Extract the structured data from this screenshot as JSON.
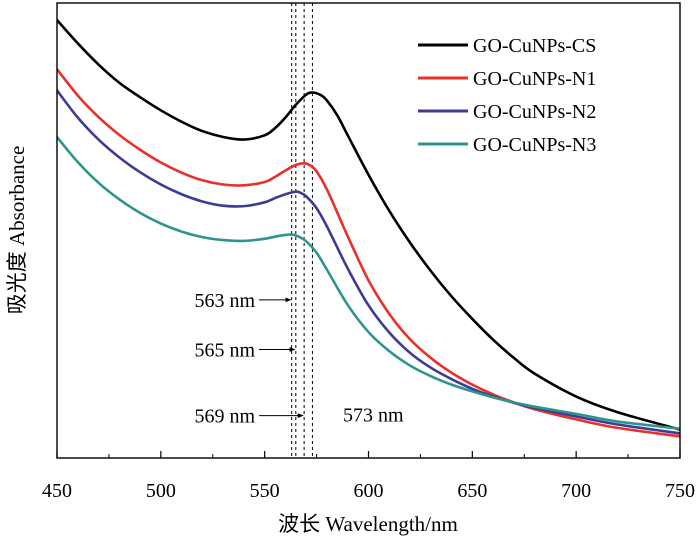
{
  "chart_data": {
    "type": "line",
    "xlabel": "波长 Wavelength/nm",
    "ylabel": "吸光度 Absorbance",
    "xlim": [
      450,
      750
    ],
    "ylim": [
      0,
      1
    ],
    "x_ticks": [
      "450",
      "500",
      "550",
      "600",
      "650",
      "700",
      "750"
    ],
    "y_ticks_shown": false,
    "grid": false,
    "legend_position": "top-right",
    "series": [
      {
        "name": "GO-CuNPs-CS",
        "color": "#000000",
        "x": [
          450,
          460,
          470,
          480,
          490,
          500,
          510,
          520,
          530,
          540,
          550,
          555,
          560,
          565,
          570,
          573,
          577,
          580,
          585,
          590,
          600,
          610,
          620,
          630,
          640,
          650,
          660,
          670,
          680,
          700,
          720,
          750
        ],
        "y": [
          1.0,
          0.945,
          0.895,
          0.852,
          0.818,
          0.787,
          0.76,
          0.738,
          0.724,
          0.718,
          0.728,
          0.745,
          0.77,
          0.8,
          0.824,
          0.829,
          0.823,
          0.81,
          0.775,
          0.728,
          0.635,
          0.55,
          0.475,
          0.408,
          0.348,
          0.295,
          0.246,
          0.203,
          0.166,
          0.112,
          0.075,
          0.034
        ]
      },
      {
        "name": "GO-CuNPs-N1",
        "color": "#e8312a",
        "x": [
          450,
          460,
          470,
          480,
          490,
          500,
          510,
          520,
          530,
          540,
          550,
          555,
          560,
          565,
          569,
          572,
          575,
          580,
          590,
          600,
          610,
          620,
          630,
          640,
          650,
          660,
          670,
          680,
          700,
          720,
          750
        ],
        "y": [
          0.884,
          0.822,
          0.771,
          0.729,
          0.694,
          0.664,
          0.64,
          0.622,
          0.612,
          0.61,
          0.618,
          0.63,
          0.645,
          0.658,
          0.662,
          0.657,
          0.643,
          0.6,
          0.49,
          0.386,
          0.307,
          0.247,
          0.203,
          0.168,
          0.14,
          0.117,
          0.098,
          0.082,
          0.058,
          0.038,
          0.018
        ]
      },
      {
        "name": "GO-CuNPs-N2",
        "color": "#3c3c96",
        "x": [
          450,
          460,
          470,
          480,
          490,
          500,
          510,
          520,
          530,
          540,
          550,
          555,
          560,
          565,
          567,
          570,
          575,
          580,
          590,
          600,
          610,
          620,
          630,
          640,
          650,
          660,
          670,
          680,
          700,
          720,
          750
        ],
        "y": [
          0.834,
          0.77,
          0.718,
          0.676,
          0.641,
          0.612,
          0.589,
          0.572,
          0.562,
          0.561,
          0.57,
          0.58,
          0.589,
          0.595,
          0.593,
          0.584,
          0.556,
          0.513,
          0.414,
          0.327,
          0.263,
          0.215,
          0.18,
          0.153,
          0.13,
          0.112,
          0.097,
          0.085,
          0.065,
          0.046,
          0.025
        ]
      },
      {
        "name": "GO-CuNPs-N3",
        "color": "#2e948c",
        "x": [
          450,
          460,
          470,
          480,
          490,
          500,
          510,
          520,
          530,
          540,
          550,
          555,
          560,
          563,
          566,
          570,
          575,
          580,
          590,
          600,
          610,
          620,
          630,
          640,
          650,
          660,
          670,
          680,
          700,
          720,
          750
        ],
        "y": [
          0.724,
          0.665,
          0.616,
          0.577,
          0.545,
          0.52,
          0.501,
          0.488,
          0.481,
          0.479,
          0.484,
          0.489,
          0.493,
          0.494,
          0.49,
          0.478,
          0.451,
          0.411,
          0.328,
          0.264,
          0.219,
          0.185,
          0.16,
          0.14,
          0.124,
          0.11,
          0.098,
          0.088,
          0.071,
          0.053,
          0.036
        ]
      }
    ],
    "reference_lines": [
      {
        "x": 563,
        "style": "dashed"
      },
      {
        "x": 565,
        "style": "dashed"
      },
      {
        "x": 569,
        "style": "dashed"
      },
      {
        "x": 573,
        "style": "dashed"
      }
    ],
    "annotations": [
      {
        "text": "563 nm",
        "arrow_to": 563,
        "y": 0.34
      },
      {
        "text": "565 nm",
        "arrow_to": 565,
        "y": 0.223
      },
      {
        "text": "569 nm",
        "arrow_to": 569,
        "y": 0.067
      },
      {
        "text": "573 nm",
        "y": 0.07
      }
    ]
  }
}
